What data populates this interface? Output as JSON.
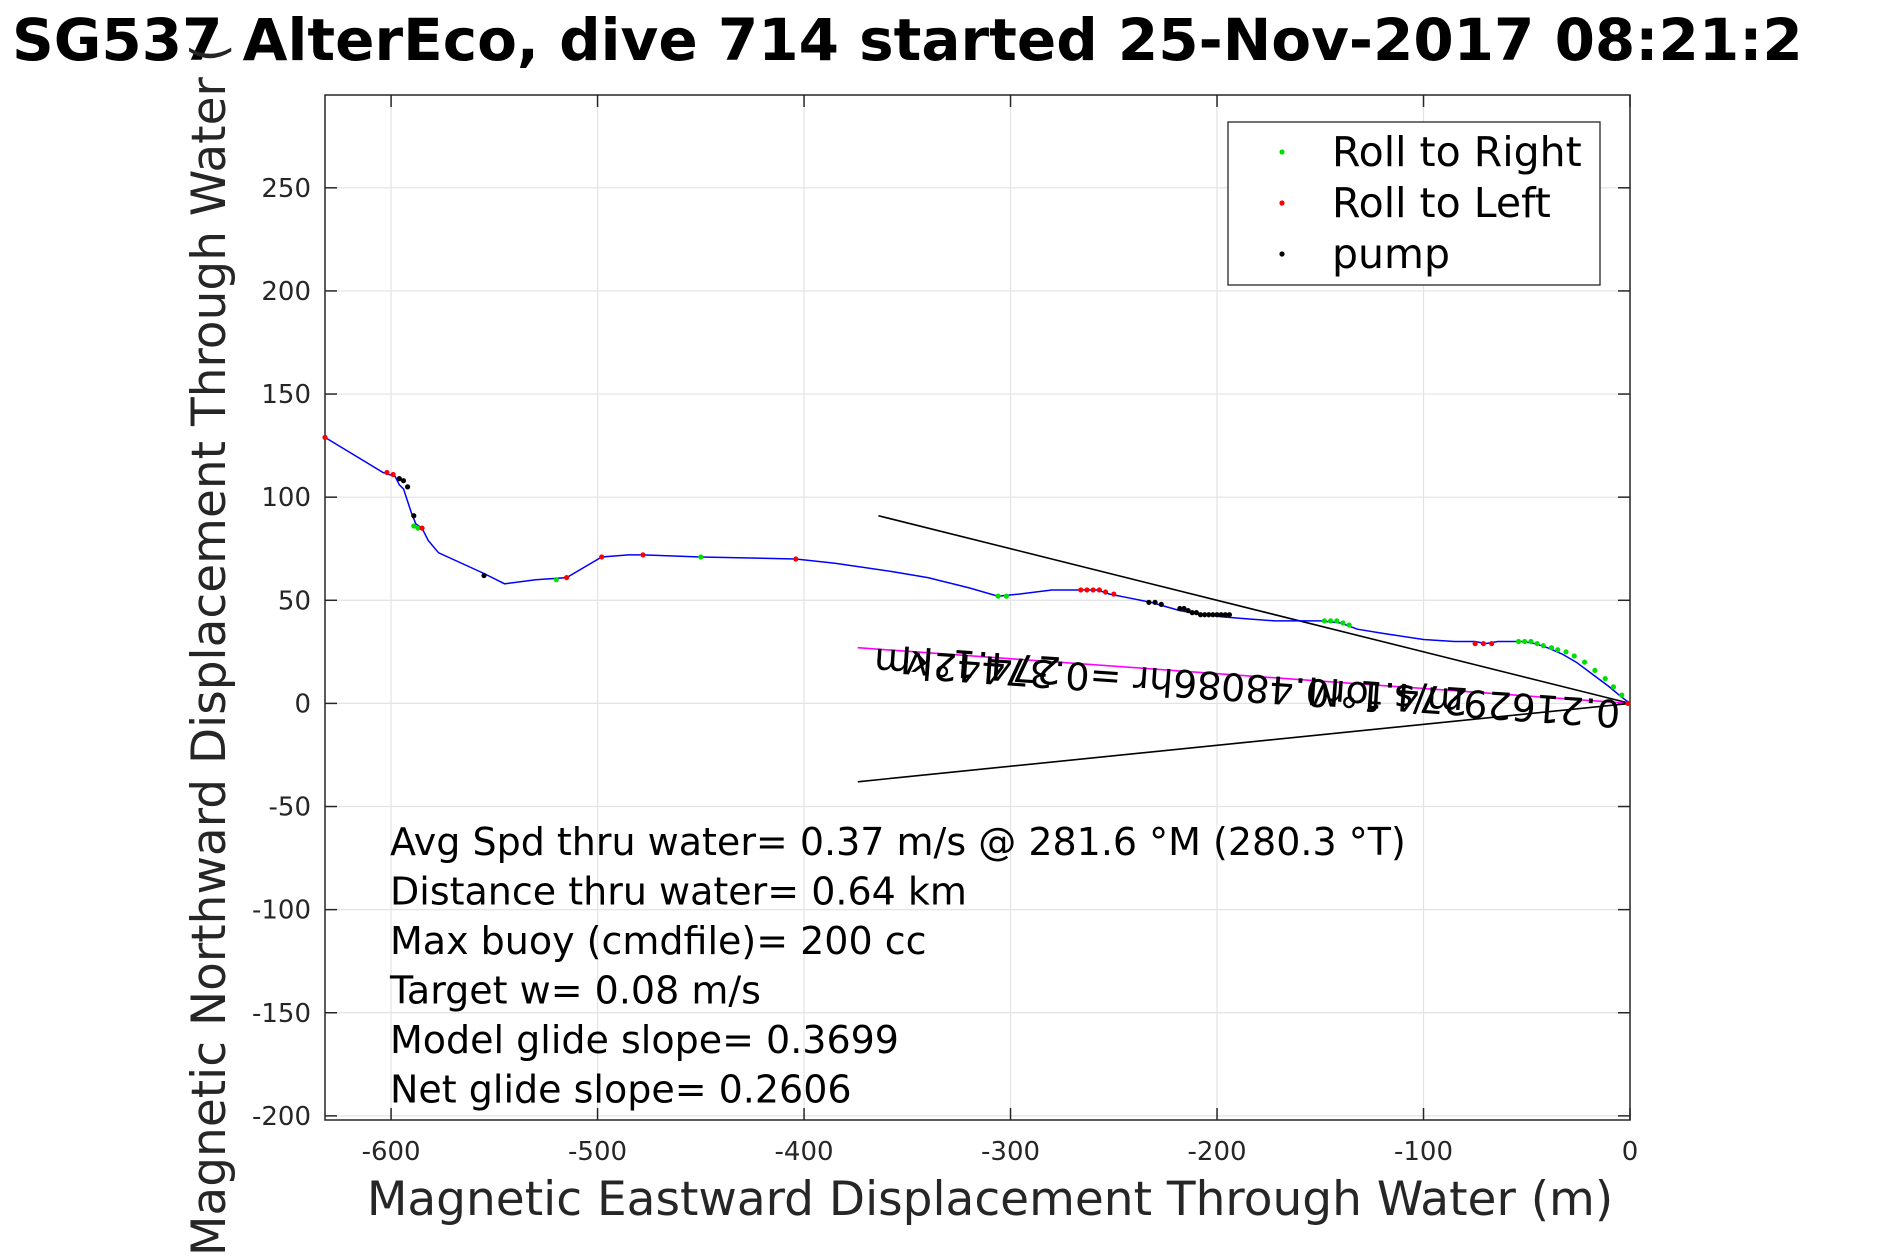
{
  "chart_data": {
    "type": "line",
    "title": "SG537 AlterEco, dive 714 started 25-Nov-2017 08:21:2",
    "xlabel": "Magnetic Eastward Displacement Through Water (m)",
    "ylabel": "Magnetic Northward Displacement Through Water (",
    "xlim": [
      -632,
      0
    ],
    "ylim": [
      -202,
      295
    ],
    "xticks": [
      -600,
      -500,
      -400,
      -300,
      -200,
      -100,
      0
    ],
    "yticks": [
      250,
      200,
      150,
      100,
      50,
      0,
      -50,
      -100,
      -150,
      -200
    ],
    "grid": true,
    "legend_position": "top-right",
    "legend": [
      {
        "label": "Roll to Right",
        "color": "#00e000"
      },
      {
        "label": "Roll to Left",
        "color": "#ff0000"
      },
      {
        "label": "pump",
        "color": "#000000"
      }
    ],
    "track": {
      "color": "#0000ff",
      "x": [
        -632,
        -604,
        -598,
        -596,
        -594,
        -590,
        -588,
        -585,
        -582,
        -577,
        -555,
        -545,
        -530,
        -515,
        -498,
        -485,
        -478,
        -450,
        -404,
        -385,
        -358,
        -340,
        -320,
        -306,
        -296,
        -280,
        -266,
        -262,
        -258,
        -255,
        -252,
        -242,
        -232,
        -225,
        -218,
        -212,
        -205,
        -198,
        -186,
        -172,
        -150,
        -140,
        -132,
        -120,
        -100,
        -85,
        -75,
        -70,
        -64,
        -58,
        -52,
        -46,
        -40,
        -33,
        -26,
        -18,
        -10,
        -4,
        0
      ],
      "y": [
        129,
        112,
        110,
        106,
        104,
        92,
        87,
        85,
        79,
        73,
        63,
        58,
        60,
        61,
        71,
        72,
        72,
        71,
        70,
        68,
        64,
        61,
        56,
        52,
        53,
        55,
        55,
        55,
        55,
        54,
        53,
        51,
        49,
        47,
        45,
        44,
        43,
        42,
        41,
        40,
        40,
        39,
        36,
        34,
        31,
        30,
        30,
        29,
        30,
        30,
        30,
        29,
        27,
        24,
        20,
        14,
        8,
        3,
        0
      ]
    },
    "roll_right": {
      "x": [
        -589,
        -587,
        -520,
        -450,
        -306,
        -302,
        -148,
        -145,
        -142,
        -139,
        -136,
        -54,
        -51,
        -48,
        -45,
        -42,
        -38,
        -35,
        -31,
        -27,
        -22,
        -17,
        -12,
        -8,
        -4
      ],
      "y": [
        86,
        85,
        60,
        71,
        52,
        52,
        40,
        40,
        40,
        39,
        38,
        30,
        30,
        30,
        29,
        28,
        27,
        26,
        25,
        23,
        20,
        16,
        12,
        8,
        4
      ]
    },
    "roll_left": {
      "x": [
        -632,
        -602,
        -599,
        -585,
        -515,
        -498,
        -478,
        -404,
        -266,
        -263,
        -260,
        -257,
        -254,
        -250,
        -75,
        -71,
        -67,
        -1
      ],
      "y": [
        129,
        112,
        111,
        85,
        61,
        71,
        72,
        70,
        55,
        55,
        55,
        55,
        54,
        53,
        29,
        29,
        29,
        0
      ]
    },
    "pump": {
      "x": [
        -596,
        -594,
        -592,
        -589,
        -555,
        -233,
        -230,
        -227,
        -218,
        -216,
        -214,
        -212,
        -210,
        -208,
        -206,
        -204,
        -202,
        -200,
        -198,
        -196,
        -194
      ],
      "y": [
        109,
        108,
        105,
        91,
        62,
        49,
        49,
        48,
        46,
        46,
        45,
        44,
        44,
        43,
        43,
        43,
        43,
        43,
        43,
        43,
        43
      ]
    },
    "lines": [
      {
        "name": "current-line",
        "color": "#ff00ff",
        "x": [
          0,
          -374
        ],
        "y": [
          0,
          27
        ]
      },
      {
        "name": "upper-heading-line",
        "color": "#000000",
        "x": [
          0,
          -364
        ],
        "y": [
          0,
          91
        ]
      },
      {
        "name": "lower-heading-line",
        "color": "#000000",
        "x": [
          0,
          -374
        ],
        "y": [
          0,
          -38
        ]
      }
    ],
    "rotated_labels": [
      {
        "text": "0.21629m/s for0.48086hr =0.37442km",
        "x": -185,
        "y": 14
      },
      {
        "text": "274.1°M",
        "x": -314,
        "y": 25
      },
      {
        "text": "274.1°M",
        "x": -117,
        "y": 10
      }
    ],
    "annotations": [
      "Avg Spd thru water=  0.37 m/s @ 281.6 °M (280.3 °T)",
      "Distance thru water=  0.64 km",
      "Max buoy (cmdfile)= 200 cc",
      "Target w= 0.08 m/s",
      "Model glide slope= 0.3699",
      "Net glide slope= 0.2606"
    ]
  }
}
